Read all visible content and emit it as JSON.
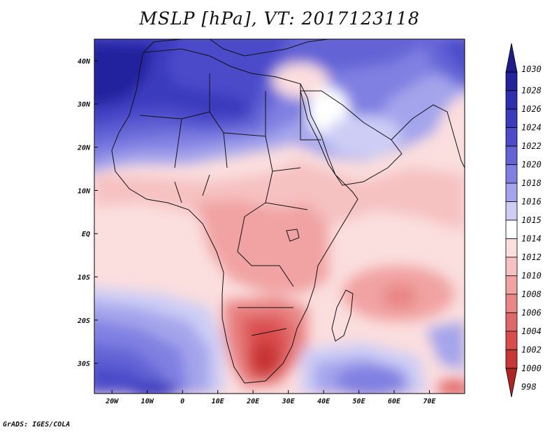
{
  "title": "MSLP [hPa], VT: 2017123118",
  "footer": "GrADS: IGES/COLA",
  "map": {
    "lon_range": [
      -25,
      80
    ],
    "lat_range": [
      -37,
      45
    ],
    "lon_ticks": [
      {
        "value": -20,
        "label": "20W"
      },
      {
        "value": -10,
        "label": "10W"
      },
      {
        "value": 0,
        "label": "0"
      },
      {
        "value": 10,
        "label": "10E"
      },
      {
        "value": 20,
        "label": "20E"
      },
      {
        "value": 30,
        "label": "30E"
      },
      {
        "value": 40,
        "label": "40E"
      },
      {
        "value": 50,
        "label": "50E"
      },
      {
        "value": 60,
        "label": "60E"
      },
      {
        "value": 70,
        "label": "70E"
      }
    ],
    "lat_ticks": [
      {
        "value": 40,
        "label": "40N"
      },
      {
        "value": 30,
        "label": "30N"
      },
      {
        "value": 20,
        "label": "20N"
      },
      {
        "value": 10,
        "label": "10N"
      },
      {
        "value": 0,
        "label": "EQ"
      },
      {
        "value": -10,
        "label": "10S"
      },
      {
        "value": -20,
        "label": "20S"
      },
      {
        "value": -30,
        "label": "30S"
      }
    ]
  },
  "colorbar": {
    "levels": [
      {
        "label": "1030",
        "color": "#1c1c8c"
      },
      {
        "label": "1028",
        "color": "#23239e"
      },
      {
        "label": "1026",
        "color": "#2e2eb0"
      },
      {
        "label": "1024",
        "color": "#3b3bbe"
      },
      {
        "label": "1022",
        "color": "#4c4cca"
      },
      {
        "label": "1020",
        "color": "#6464d6"
      },
      {
        "label": "1018",
        "color": "#8080e2"
      },
      {
        "label": "1016",
        "color": "#a4a4ec"
      },
      {
        "label": "1015",
        "color": "#cdcdf6"
      },
      {
        "label": "1014",
        "color": "#ffffff"
      },
      {
        "label": "1012",
        "color": "#fbdede"
      },
      {
        "label": "1010",
        "color": "#f6c1c1"
      },
      {
        "label": "1008",
        "color": "#f1a3a3"
      },
      {
        "label": "1006",
        "color": "#ea8686"
      },
      {
        "label": "1004",
        "color": "#e16868"
      },
      {
        "label": "1002",
        "color": "#d84c4c"
      },
      {
        "label": "1000",
        "color": "#c83636"
      },
      {
        "label": "998",
        "color": "#b02424"
      }
    ]
  }
}
